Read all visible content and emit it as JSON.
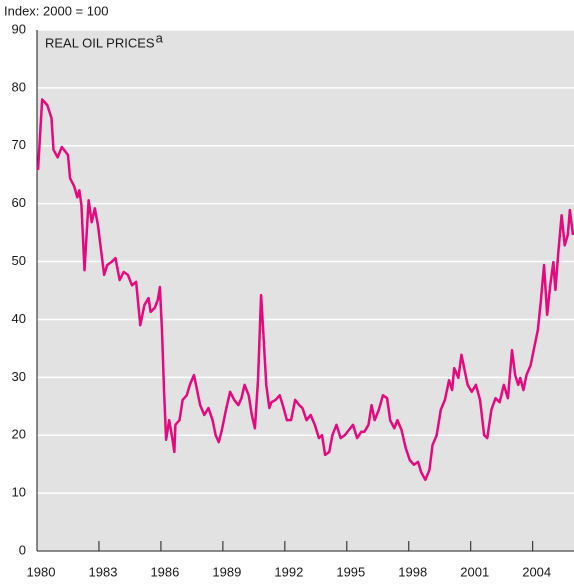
{
  "chart_data": {
    "type": "line",
    "title": "REAL OIL PRICES",
    "title_marker": "a",
    "y_axis_label": "Index: 2000 = 100",
    "grid": true,
    "background": "#e2e2e2",
    "xlim": [
      1980,
      2006
    ],
    "xticks": [
      1980,
      1983,
      1986,
      1989,
      1992,
      1995,
      1998,
      2001,
      2004
    ],
    "ylim": [
      0,
      90
    ],
    "yticks": [
      0,
      10,
      20,
      30,
      40,
      50,
      60,
      70,
      80,
      90
    ],
    "x": [
      1980.05,
      1980.25,
      1980.5,
      1980.7,
      1980.8,
      1981.0,
      1981.2,
      1981.5,
      1981.6,
      1981.8,
      1981.95,
      1982.05,
      1982.15,
      1982.3,
      1982.5,
      1982.65,
      1982.8,
      1982.95,
      1983.1,
      1983.25,
      1983.4,
      1983.6,
      1983.8,
      1984.0,
      1984.2,
      1984.4,
      1984.6,
      1984.8,
      1985.0,
      1985.2,
      1985.4,
      1985.5,
      1985.7,
      1985.85,
      1985.95,
      1986.05,
      1986.15,
      1986.25,
      1986.4,
      1986.55,
      1986.65,
      1986.7,
      1986.9,
      1987.05,
      1987.25,
      1987.4,
      1987.6,
      1987.75,
      1987.9,
      1988.1,
      1988.3,
      1988.5,
      1988.65,
      1988.8,
      1988.95,
      1989.15,
      1989.35,
      1989.55,
      1989.75,
      1989.9,
      1990.05,
      1990.25,
      1990.4,
      1990.55,
      1990.7,
      1990.85,
      1990.95,
      1991.1,
      1991.25,
      1991.35,
      1991.55,
      1991.75,
      1991.9,
      1992.1,
      1992.3,
      1992.5,
      1992.7,
      1992.85,
      1993.05,
      1993.25,
      1993.45,
      1993.65,
      1993.8,
      1993.95,
      1994.15,
      1994.3,
      1994.5,
      1994.7,
      1994.9,
      1995.1,
      1995.3,
      1995.5,
      1995.7,
      1995.85,
      1996.05,
      1996.2,
      1996.35,
      1996.55,
      1996.75,
      1996.95,
      1997.1,
      1997.3,
      1997.45,
      1997.65,
      1997.85,
      1998.05,
      1998.25,
      1998.45,
      1998.6,
      1998.8,
      1999.0,
      1999.15,
      1999.35,
      1999.55,
      1999.75,
      1999.95,
      2000.1,
      2000.2,
      2000.4,
      2000.55,
      2000.7,
      2000.85,
      2001.05,
      2001.25,
      2001.45,
      2001.65,
      2001.8,
      2002.0,
      2002.2,
      2002.4,
      2002.6,
      2002.8,
      2003.0,
      2003.15,
      2003.3,
      2003.4,
      2003.55,
      2003.7,
      2003.9,
      2004.1,
      2004.25,
      2004.4,
      2004.55,
      2004.7,
      2004.85,
      2005.0,
      2005.1,
      2005.25,
      2005.4,
      2005.55,
      2005.7,
      2005.8,
      2005.95
    ],
    "series": [
      {
        "name": "Real oil prices",
        "color": "#e5087e",
        "values": [
          65.8,
          78,
          77,
          74.8,
          69.3,
          68,
          69.8,
          68.4,
          64.4,
          63,
          61.1,
          62.3,
          59.8,
          48.5,
          60.6,
          56.8,
          59.2,
          56.3,
          52,
          47.7,
          49.4,
          49.9,
          50.6,
          46.8,
          48.2,
          47.7,
          45.9,
          46.5,
          39,
          42.5,
          43.7,
          41.3,
          42,
          43.4,
          45.6,
          38.2,
          27.8,
          19.2,
          22.6,
          19.5,
          17.1,
          21.8,
          22.6,
          26.1,
          26.9,
          28.7,
          30.4,
          27.8,
          25.2,
          23.5,
          24.7,
          22.6,
          20,
          18.8,
          20.9,
          24.4,
          27.5,
          26.1,
          25.2,
          26.4,
          28.7,
          26.9,
          23.5,
          21.2,
          29.5,
          44.2,
          38.2,
          28.7,
          24.7,
          25.7,
          26.1,
          26.9,
          25.2,
          22.6,
          22.6,
          26.1,
          25.2,
          24.7,
          22.6,
          23.5,
          21.8,
          19.5,
          20,
          16.6,
          17.1,
          20,
          21.8,
          19.5,
          20,
          20.9,
          21.8,
          19.5,
          20.6,
          20.6,
          21.8,
          25.2,
          22.6,
          24.4,
          26.9,
          26.4,
          22.6,
          21.2,
          22.6,
          20.9,
          17.8,
          15.7,
          14.9,
          15.4,
          13.6,
          12.3,
          14,
          18.3,
          20,
          24.4,
          26.1,
          29.5,
          27.8,
          31.6,
          29.9,
          33.9,
          31.3,
          28.7,
          27.5,
          28.7,
          26.1,
          20,
          19.5,
          24.4,
          26.4,
          25.7,
          28.7,
          26.4,
          34.7,
          30.4,
          28.7,
          29.9,
          27.8,
          30.4,
          32.1,
          35.6,
          38.2,
          43.4,
          49.4,
          40.8,
          45.9,
          49.9,
          45.1,
          52,
          58,
          52.8,
          54.6,
          58.9,
          54.6
        ]
      }
    ]
  }
}
